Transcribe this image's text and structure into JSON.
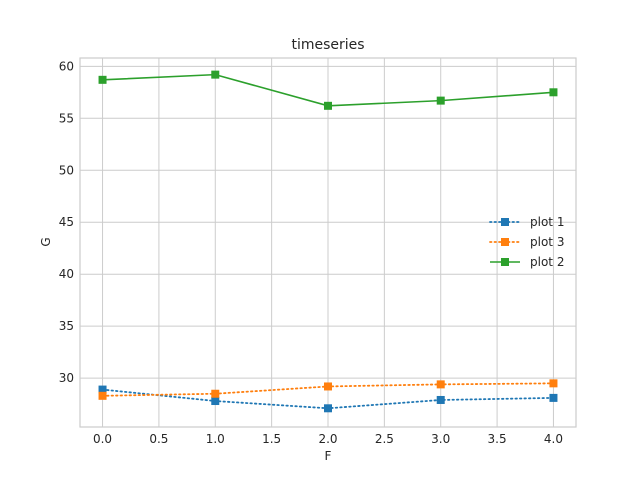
{
  "chart_data": {
    "type": "line",
    "title": "timeseries",
    "xlabel": "F",
    "ylabel": "G",
    "xlim": [
      -0.2,
      4.2
    ],
    "ylim": [
      25.3,
      60.8
    ],
    "xticks": [
      "0.0",
      "0.5",
      "1.0",
      "1.5",
      "2.0",
      "2.5",
      "3.0",
      "3.5",
      "4.0"
    ],
    "yticks": [
      "30",
      "35",
      "40",
      "45",
      "50",
      "55",
      "60"
    ],
    "grid": true,
    "legend_position": "center-right",
    "x": [
      0,
      1,
      2,
      3,
      4
    ],
    "series": [
      {
        "name": "plot 1",
        "values": [
          28.9,
          27.8,
          27.1,
          27.9,
          28.1
        ],
        "color": "#1f77b4",
        "linestyle": "dotted",
        "marker": "square"
      },
      {
        "name": "plot 3",
        "values": [
          28.3,
          28.5,
          29.2,
          29.4,
          29.5
        ],
        "color": "#ff7f0e",
        "linestyle": "dotted",
        "marker": "square"
      },
      {
        "name": "plot 2",
        "values": [
          58.7,
          59.2,
          56.2,
          56.7,
          57.5
        ],
        "color": "#2ca02c",
        "linestyle": "solid",
        "marker": "square"
      }
    ]
  }
}
